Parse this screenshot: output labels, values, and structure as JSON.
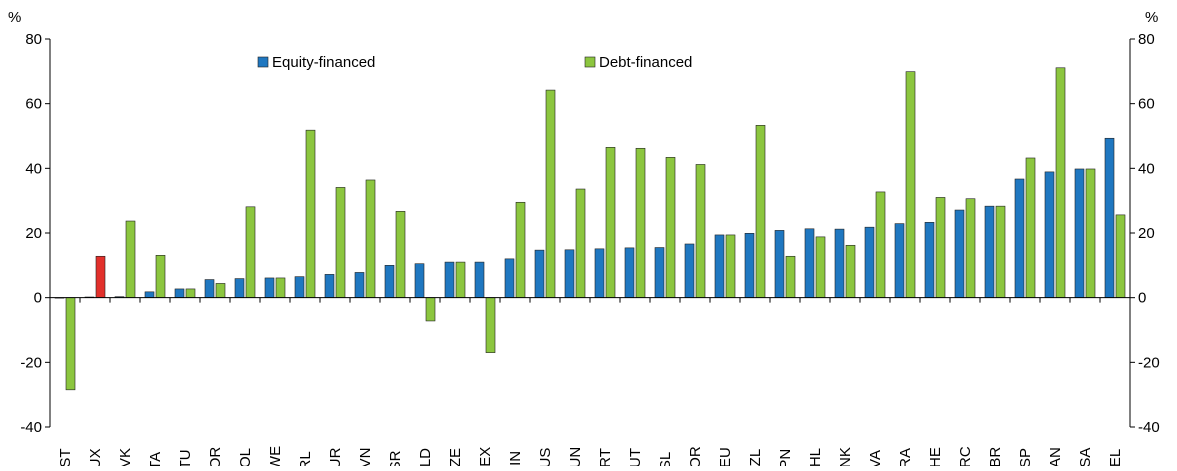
{
  "chart_data": {
    "type": "bar",
    "y_label": "%",
    "categories": [
      "EST",
      "LUX",
      "SVK",
      "ITA",
      "LTU",
      "KOR",
      "POL",
      "SWE",
      "IRL",
      "TUR",
      "SVN",
      "ISR",
      "NLD",
      "CZE",
      "MEX",
      "FIN",
      "AUS",
      "HUN",
      "PRT",
      "AUT",
      "ISL",
      "NOR",
      "DEU",
      "NZL",
      "JPN",
      "CHL",
      "DNK",
      "LVA",
      "FRA",
      "CHE",
      "GRC",
      "GBR",
      "ESP",
      "CAN",
      "USA",
      "BEL"
    ],
    "series": [
      {
        "name": "Equity-financed",
        "color": "#1f77c0",
        "values": [
          0,
          0.2,
          0.3,
          1.8,
          2.7,
          5.6,
          5.9,
          6.1,
          6.5,
          7.2,
          7.8,
          10.0,
          10.5,
          11.0,
          11.0,
          12.0,
          14.7,
          14.8,
          15.1,
          15.4,
          15.5,
          16.6,
          19.4,
          19.9,
          20.8,
          21.3,
          21.2,
          21.8,
          22.9,
          23.3,
          27.1,
          28.3,
          36.7,
          38.9,
          39.8,
          49.3
        ]
      },
      {
        "name": "Debt-financed",
        "color": "#8cc63f",
        "colors": [
          "#8cc63f",
          "#e2302b",
          "#8cc63f",
          "#8cc63f",
          "#8cc63f",
          "#8cc63f",
          "#8cc63f",
          "#8cc63f",
          "#8cc63f",
          "#8cc63f",
          "#8cc63f",
          "#8cc63f",
          "#8cc63f",
          "#8cc63f",
          "#8cc63f",
          "#8cc63f",
          "#8cc63f",
          "#8cc63f",
          "#8cc63f",
          "#8cc63f",
          "#8cc63f",
          "#8cc63f",
          "#8cc63f",
          "#8cc63f",
          "#8cc63f",
          "#8cc63f",
          "#8cc63f",
          "#8cc63f",
          "#8cc63f",
          "#8cc63f",
          "#8cc63f",
          "#8cc63f",
          "#8cc63f",
          "#8cc63f",
          "#8cc63f",
          "#8cc63f"
        ],
        "values": [
          -28.5,
          12.8,
          23.7,
          13.1,
          2.7,
          4.4,
          28.1,
          6.1,
          51.8,
          34.1,
          36.4,
          26.7,
          -7.2,
          11.0,
          -17.0,
          29.5,
          64.2,
          33.6,
          46.5,
          46.2,
          43.4,
          41.2,
          19.4,
          53.3,
          12.8,
          18.8,
          16.2,
          32.7,
          69.9,
          31.0,
          30.6,
          28.3,
          43.2,
          71.1,
          39.8,
          25.6
        ]
      }
    ],
    "ylim": [
      -40,
      80
    ],
    "yticks": [
      -40,
      -20,
      0,
      20,
      40,
      60,
      80
    ],
    "y2lim": [
      -40,
      80
    ],
    "y2ticks": [
      -40,
      -20,
      0,
      20,
      40,
      60,
      80
    ]
  }
}
